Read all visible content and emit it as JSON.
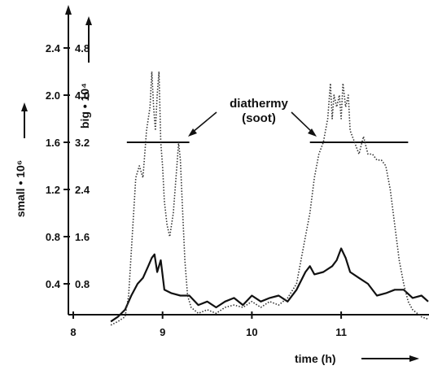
{
  "chart_data": {
    "type": "line",
    "title": "",
    "xlabel": "time (h)",
    "ylabel_left": "small • 10⁶",
    "ylabel_right": "big • 10⁴",
    "xlim": [
      8,
      12
    ],
    "ylim_small": [
      0,
      2.8
    ],
    "ylim_big": [
      0,
      5.6
    ],
    "x_ticks": [
      "8",
      "9",
      "10",
      "11"
    ],
    "y_ticks_small": [
      "0.4",
      "0.8",
      "1.2",
      "1.6",
      "2.0",
      "2.4"
    ],
    "y_ticks_big": [
      "0.8",
      "1.6",
      "2.4",
      "3.2",
      "4.0",
      "4.8"
    ],
    "grid": false,
    "legend": "none",
    "annotation": {
      "line1": "diathermy",
      "line2": "(soot)"
    },
    "reference_segments": [
      {
        "x_start": 8.6,
        "x_end": 9.3,
        "value_small": 1.6
      },
      {
        "x_start": 10.65,
        "x_end": 11.75,
        "value_small": 1.6
      }
    ],
    "series": [
      {
        "style": "solid",
        "axis": "small",
        "color": "#111111",
        "x": [
          8.42,
          8.5,
          8.58,
          8.65,
          8.72,
          8.78,
          8.84,
          8.88,
          8.91,
          8.94,
          8.98,
          9.02,
          9.1,
          9.2,
          9.3,
          9.4,
          9.5,
          9.6,
          9.7,
          9.8,
          9.9,
          10.0,
          10.1,
          10.2,
          10.3,
          10.4,
          10.5,
          10.6,
          10.65,
          10.7,
          10.8,
          10.9,
          10.95,
          11.0,
          11.05,
          11.1,
          11.2,
          11.3,
          11.4,
          11.5,
          11.6,
          11.7,
          11.8,
          11.9,
          12.0
        ],
        "y": [
          0.08,
          0.12,
          0.18,
          0.3,
          0.4,
          0.45,
          0.55,
          0.62,
          0.65,
          0.5,
          0.6,
          0.35,
          0.32,
          0.3,
          0.3,
          0.22,
          0.25,
          0.2,
          0.25,
          0.28,
          0.22,
          0.3,
          0.25,
          0.28,
          0.3,
          0.25,
          0.35,
          0.5,
          0.55,
          0.48,
          0.5,
          0.55,
          0.6,
          0.7,
          0.62,
          0.5,
          0.45,
          0.4,
          0.3,
          0.32,
          0.35,
          0.35,
          0.28,
          0.3,
          0.25
        ]
      },
      {
        "style": "dotted",
        "axis": "small",
        "color": "#333333",
        "x": [
          8.42,
          8.5,
          8.58,
          8.62,
          8.66,
          8.7,
          8.74,
          8.78,
          8.82,
          8.86,
          8.88,
          8.9,
          8.92,
          8.94,
          8.96,
          8.98,
          9.0,
          9.02,
          9.05,
          9.08,
          9.12,
          9.16,
          9.18,
          9.2,
          9.22,
          9.25,
          9.28,
          9.32,
          9.4,
          9.5,
          9.6,
          9.7,
          9.8,
          9.9,
          10.0,
          10.1,
          10.2,
          10.3,
          10.4,
          10.5,
          10.6,
          10.65,
          10.7,
          10.75,
          10.8,
          10.85,
          10.88,
          10.9,
          10.92,
          10.95,
          10.98,
          11.0,
          11.02,
          11.05,
          11.08,
          11.1,
          11.15,
          11.2,
          11.25,
          11.3,
          11.35,
          11.4,
          11.45,
          11.5,
          11.55,
          11.6,
          11.65,
          11.7,
          11.75,
          11.8,
          11.9,
          12.0
        ],
        "y": [
          0.05,
          0.08,
          0.12,
          0.3,
          0.8,
          1.3,
          1.4,
          1.3,
          1.7,
          1.9,
          2.2,
          1.9,
          1.7,
          2.0,
          2.2,
          1.6,
          1.4,
          1.1,
          0.9,
          0.8,
          1.0,
          1.4,
          1.6,
          1.45,
          1.1,
          0.6,
          0.3,
          0.2,
          0.15,
          0.18,
          0.15,
          0.2,
          0.22,
          0.2,
          0.25,
          0.2,
          0.25,
          0.22,
          0.28,
          0.4,
          0.8,
          1.0,
          1.3,
          1.5,
          1.6,
          1.8,
          2.1,
          1.8,
          2.0,
          1.9,
          2.0,
          1.8,
          2.1,
          1.9,
          2.0,
          1.7,
          1.6,
          1.5,
          1.65,
          1.5,
          1.5,
          1.45,
          1.45,
          1.4,
          1.2,
          0.9,
          0.6,
          0.4,
          0.25,
          0.18,
          0.12,
          0.1
        ]
      }
    ]
  }
}
